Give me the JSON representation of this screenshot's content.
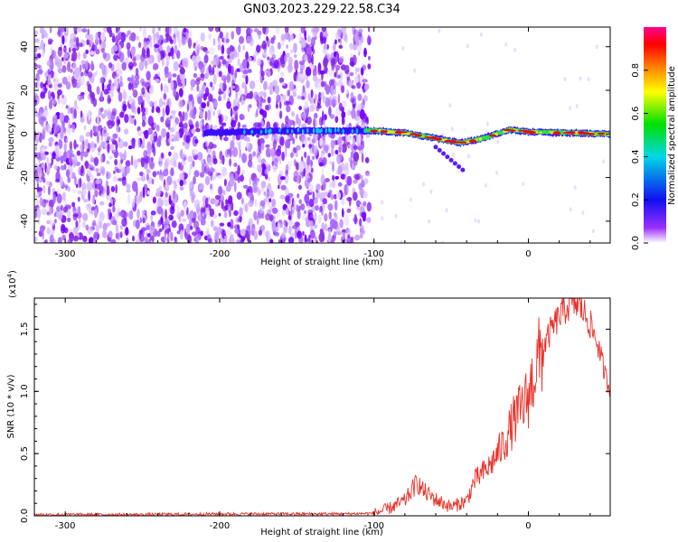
{
  "title": "GN03.2023.229.22.58.C34",
  "chart_data": [
    {
      "type": "heatmap",
      "title": "GN03.2023.229.22.58.C34",
      "xlabel": "Height of straight line (km)",
      "ylabel": "Frequency (Hz)",
      "xlim": [
        -320,
        53
      ],
      "ylim": [
        -50,
        49
      ],
      "xticks": [
        -300,
        -200,
        -100,
        0
      ],
      "yticks": [
        -40,
        -20,
        0,
        20,
        40
      ],
      "colorbar": {
        "label": "Normalized spectral amplitude",
        "range": [
          0,
          1
        ],
        "ticks": [
          "0.0",
          "0.2",
          "0.4",
          "0.6",
          "0.8"
        ],
        "tick_values": [
          0,
          0.2,
          0.4,
          0.6,
          0.8
        ],
        "colormap": "rainbow (white, purple, blue, cyan, green, yellow, orange, red, magenta)"
      },
      "grid": false,
      "features": {
        "noise_region_km": [
          -320,
          -103
        ],
        "signal_band_start_km": -210,
        "signal_band_frequency_track": [
          {
            "x": -210,
            "y": 0.5
          },
          {
            "x": -150,
            "y": 1.5
          },
          {
            "x": -100,
            "y": 1.5
          },
          {
            "x": -80,
            "y": 0.5
          },
          {
            "x": -60,
            "y": -2
          },
          {
            "x": -45,
            "y": -4
          },
          {
            "x": -35,
            "y": -3
          },
          {
            "x": -25,
            "y": -1
          },
          {
            "x": -12,
            "y": 2
          },
          {
            "x": 0,
            "y": 1
          },
          {
            "x": 53,
            "y": 0
          }
        ]
      }
    },
    {
      "type": "line",
      "xlabel": "Height of straight line (km)",
      "ylabel": "SNR (10 * v/v)",
      "y_multiplier": "(x10^4)",
      "y_multiplier_base": "(x10",
      "y_multiplier_exp": "4",
      "y_multiplier_close": ")",
      "xlim": [
        -320,
        53
      ],
      "ylim": [
        0,
        1.75
      ],
      "xticks": [
        -300,
        -200,
        -100,
        0
      ],
      "yticks": [
        "0.0",
        "0.5",
        "1.0",
        "1.5"
      ],
      "ytick_values": [
        0,
        0.5,
        1.0,
        1.5
      ],
      "grid": false,
      "series": [
        {
          "color": "#e8322a",
          "x": [
            -320,
            -250,
            -200,
            -150,
            -120,
            -100,
            -90,
            -80,
            -72,
            -68,
            -60,
            -50,
            -40,
            -35,
            -30,
            -25,
            -20,
            -15,
            -10,
            -5,
            0,
            5,
            10,
            15,
            20,
            25,
            30,
            35,
            40,
            45,
            50,
            53
          ],
          "y": [
            0.01,
            0.01,
            0.015,
            0.015,
            0.015,
            0.02,
            0.06,
            0.12,
            0.27,
            0.2,
            0.13,
            0.07,
            0.12,
            0.28,
            0.34,
            0.4,
            0.5,
            0.6,
            0.75,
            0.85,
            0.96,
            1.2,
            1.36,
            1.5,
            1.6,
            1.68,
            1.71,
            1.66,
            1.54,
            1.38,
            1.12,
            1.01
          ]
        }
      ]
    }
  ]
}
